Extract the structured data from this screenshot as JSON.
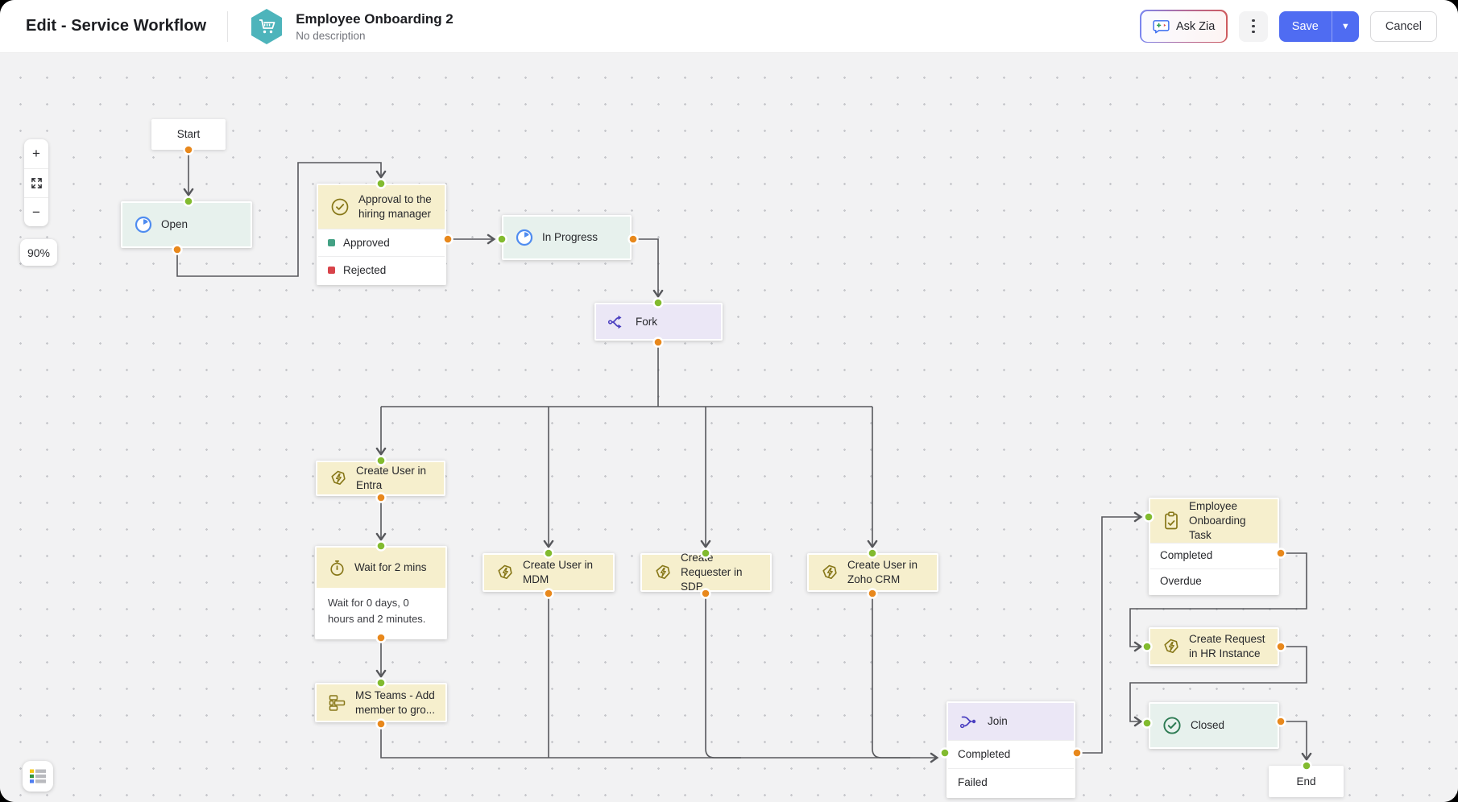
{
  "header": {
    "page_title": "Edit - Service Workflow",
    "workflow_info": {
      "title": "Employee Onboarding 2",
      "subtitle": "No description",
      "icon": "cart-hexagon-icon",
      "icon_color": "#4db4bb"
    },
    "actions": {
      "ask_zia": "Ask Zia",
      "more": "kebab-menu-icon",
      "save": "Save",
      "cancel": "Cancel"
    }
  },
  "canvas": {
    "zoom_in": "+",
    "zoom_out": "−",
    "fit_screen": "expand-icon",
    "zoom_level": "90%",
    "legend": "legend-icon"
  },
  "workflow": {
    "nodes": [
      {
        "id": "start",
        "label": "Start"
      },
      {
        "id": "open",
        "label": "Open",
        "icon": "status-pie-icon"
      },
      {
        "id": "approval",
        "title": "Approval to the hiring manager",
        "icon": "approval-check-icon",
        "rows": [
          {
            "label": "Approved",
            "bullet": "#43a184"
          },
          {
            "label": "Rejected",
            "bullet": "#d8434a"
          }
        ]
      },
      {
        "id": "in_progress",
        "label": "In Progress",
        "icon": "status-pie-icon"
      },
      {
        "id": "fork",
        "label": "Fork",
        "icon": "fork-icon"
      },
      {
        "id": "create_user_entra",
        "label": "Create User in Entra",
        "icon": "action-bolt-icon"
      },
      {
        "id": "wait_2_mins",
        "label": "Wait for 2 mins",
        "icon": "timer-icon",
        "description": "Wait for 0 days, 0 hours and 2 minutes."
      },
      {
        "id": "create_user_mdm",
        "label": "Create User in MDM",
        "icon": "action-bolt-icon"
      },
      {
        "id": "create_requester_sdp",
        "label": "Create Requester in SDP",
        "icon": "action-bolt-icon"
      },
      {
        "id": "create_user_zoho_crm",
        "label": "Create User in Zoho CRM",
        "icon": "action-bolt-icon"
      },
      {
        "id": "ms_teams_add_member",
        "label": "MS Teams - Add member to gro...",
        "icon": "teams-group-icon"
      },
      {
        "id": "join",
        "title": "Join",
        "icon": "join-icon",
        "rows": [
          {
            "label": "Completed"
          },
          {
            "label": "Failed"
          }
        ]
      },
      {
        "id": "employee_onboarding_task",
        "title": "Employee Onboarding Task",
        "icon": "clipboard-check-icon",
        "rows": [
          {
            "label": "Completed"
          },
          {
            "label": "Overdue"
          }
        ]
      },
      {
        "id": "create_request_hr",
        "label": "Create Request in HR Instance",
        "icon": "action-bolt-icon"
      },
      {
        "id": "closed",
        "label": "Closed",
        "icon": "check-circle-icon"
      },
      {
        "id": "end",
        "label": "End"
      }
    ],
    "edges": [
      {
        "from": "start",
        "to": "open"
      },
      {
        "from": "open",
        "to": "approval"
      },
      {
        "from": "approval.Approved",
        "to": "in_progress"
      },
      {
        "from": "in_progress",
        "to": "fork"
      },
      {
        "from": "fork",
        "to": "create_user_entra"
      },
      {
        "from": "fork",
        "to": "create_user_mdm"
      },
      {
        "from": "fork",
        "to": "create_requester_sdp"
      },
      {
        "from": "fork",
        "to": "create_user_zoho_crm"
      },
      {
        "from": "create_user_entra",
        "to": "wait_2_mins"
      },
      {
        "from": "wait_2_mins",
        "to": "ms_teams_add_member"
      },
      {
        "from": "ms_teams_add_member",
        "to": "join"
      },
      {
        "from": "create_user_mdm",
        "to": "join"
      },
      {
        "from": "create_requester_sdp",
        "to": "join"
      },
      {
        "from": "create_user_zoho_crm",
        "to": "join"
      },
      {
        "from": "join.Completed",
        "to": "employee_onboarding_task"
      },
      {
        "from": "employee_onboarding_task.Completed",
        "to": "create_request_hr"
      },
      {
        "from": "create_request_hr",
        "to": "closed"
      },
      {
        "from": "closed",
        "to": "end"
      }
    ]
  },
  "colors": {
    "save_button": "#4f6cf2",
    "port_in": "#82bb2f",
    "port_out": "#e8881c",
    "status_node": "#e7f1ed",
    "action_node": "#f6efcd",
    "gateway_node": "#ebe7f6",
    "approved_bullet": "#43a184",
    "rejected_bullet": "#d8434a",
    "edge_line": "#57585c"
  }
}
